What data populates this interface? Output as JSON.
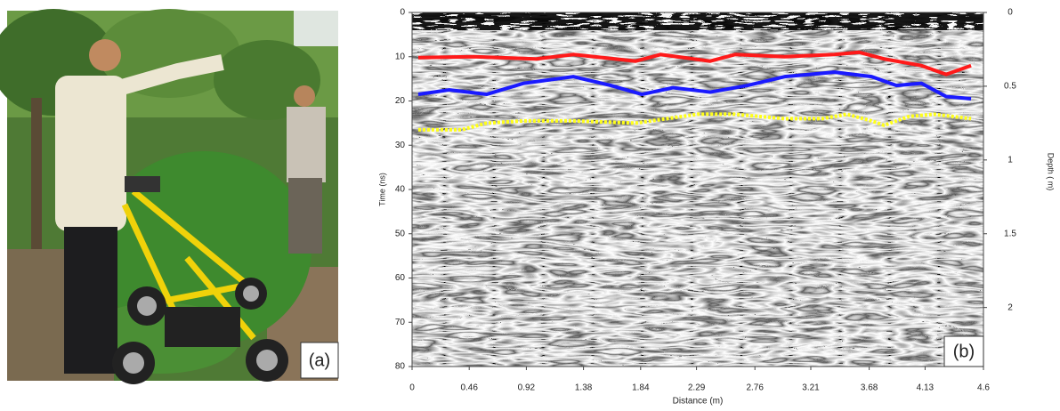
{
  "photo_label": "(a)",
  "chart_data": {
    "type": "radargram",
    "label": "(b)",
    "xlabel": "Distance (m)",
    "ylabel": "Time (ns)",
    "y2label": "Depth ( m)",
    "xlim": [
      0,
      4.6
    ],
    "xticks": [
      0,
      0.46,
      0.92,
      1.38,
      1.84,
      2.29,
      2.76,
      3.21,
      3.68,
      4.13,
      4.6
    ],
    "ylim": [
      0,
      80
    ],
    "yticks": [
      0,
      10,
      20,
      30,
      40,
      50,
      60,
      70,
      80
    ],
    "y2lim": [
      0,
      2.4
    ],
    "y2ticks": [
      0,
      0.5,
      1,
      1.5,
      2
    ],
    "series": [
      {
        "color": "#ff1a1a",
        "style": "solid",
        "x": [
          0.05,
          0.5,
          1.0,
          1.3,
          1.8,
          2.0,
          2.4,
          2.6,
          3.0,
          3.4,
          3.6,
          3.8,
          4.1,
          4.3,
          4.5
        ],
        "values": [
          10.2,
          10,
          10.5,
          9.5,
          11,
          9.5,
          11,
          9.5,
          10,
          9.5,
          9,
          10.5,
          12,
          14,
          12
        ]
      },
      {
        "color": "#1a1aff",
        "style": "solid",
        "x": [
          0.05,
          0.3,
          0.6,
          0.9,
          1.3,
          1.6,
          1.85,
          2.1,
          2.4,
          2.7,
          3.0,
          3.4,
          3.7,
          3.9,
          4.1,
          4.3,
          4.5
        ],
        "values": [
          18.5,
          17.5,
          18.5,
          16,
          14.5,
          16.5,
          18.5,
          17,
          18,
          16.5,
          14.5,
          13.5,
          14.5,
          16.5,
          16,
          19,
          19.5
        ]
      },
      {
        "color": "#ffff1a",
        "style": "dotted",
        "x": [
          0.05,
          0.4,
          0.6,
          0.9,
          1.3,
          1.8,
          2.3,
          2.6,
          3.0,
          3.3,
          3.5,
          3.7,
          3.8,
          4.0,
          4.2,
          4.5
        ],
        "values": [
          26.5,
          26.5,
          25,
          24.5,
          24.5,
          25,
          23,
          23,
          24,
          24,
          23,
          24.5,
          25.5,
          23.5,
          23,
          24
        ]
      }
    ]
  }
}
